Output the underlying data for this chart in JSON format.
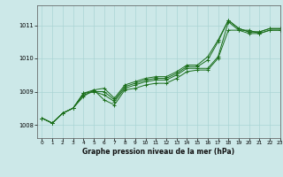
{
  "title": "Graphe pression niveau de la mer (hPa)",
  "bg_color": "#cce8e8",
  "grid_color": "#aad4d4",
  "line_color": "#1a6e1a",
  "xlim": [
    -0.5,
    23
  ],
  "ylim": [
    1007.6,
    1011.6
  ],
  "yticks": [
    1008,
    1009,
    1010,
    1011
  ],
  "xticks": [
    0,
    1,
    2,
    3,
    4,
    5,
    6,
    7,
    8,
    9,
    10,
    11,
    12,
    13,
    14,
    15,
    16,
    17,
    18,
    19,
    20,
    21,
    22,
    23
  ],
  "series": [
    [
      1008.2,
      1008.05,
      1008.35,
      1008.5,
      1008.85,
      1009.05,
      1008.75,
      1008.6,
      1009.05,
      1009.1,
      1009.2,
      1009.25,
      1009.25,
      1009.4,
      1009.6,
      1009.65,
      1009.65,
      1010.0,
      1010.85,
      1010.85,
      1010.85,
      1010.75,
      1010.85,
      1010.85
    ],
    [
      1008.2,
      1008.05,
      1008.35,
      1008.5,
      1008.9,
      1009.0,
      1008.9,
      1008.7,
      1009.1,
      1009.2,
      1009.3,
      1009.35,
      1009.35,
      1009.5,
      1009.7,
      1009.7,
      1009.7,
      1010.05,
      1011.1,
      1010.85,
      1010.75,
      1010.75,
      1010.85,
      1010.85
    ],
    [
      1008.2,
      1008.05,
      1008.35,
      1008.5,
      1008.95,
      1009.0,
      1009.0,
      1008.75,
      1009.15,
      1009.25,
      1009.35,
      1009.4,
      1009.4,
      1009.55,
      1009.75,
      1009.75,
      1009.95,
      1010.5,
      1011.15,
      1010.9,
      1010.8,
      1010.8,
      1010.9,
      1010.9
    ],
    [
      1008.2,
      1008.05,
      1008.35,
      1008.5,
      1008.95,
      1009.05,
      1009.1,
      1008.8,
      1009.2,
      1009.3,
      1009.4,
      1009.45,
      1009.45,
      1009.6,
      1009.8,
      1009.8,
      1010.05,
      1010.55,
      1011.15,
      1010.9,
      1010.8,
      1010.8,
      1010.9,
      1010.9
    ]
  ]
}
